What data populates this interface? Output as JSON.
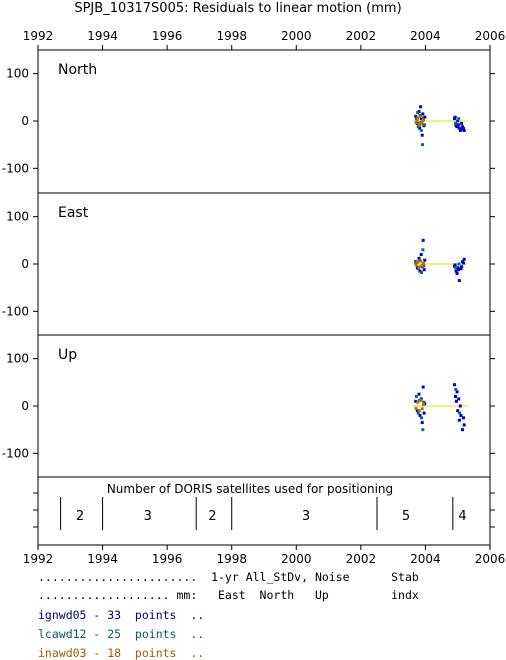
{
  "chart_data": {
    "title": "SPJB_10317S005: Residuals to linear motion (mm)",
    "type": "scatter",
    "x_ticks": [
      "1992",
      "1994",
      "1996",
      "1998",
      "2000",
      "2002",
      "2004",
      "2006"
    ],
    "xlim": [
      1992,
      2006
    ],
    "panels": [
      {
        "label": "North",
        "ylim": [
          -150,
          150
        ],
        "y_ticks": [
          100,
          0,
          -100
        ],
        "y_tick_labels": [
          "100",
          "0",
          "-100"
        ],
        "fit_line": [
          [
            2003.6,
            0
          ],
          [
            2005.3,
            0
          ]
        ],
        "series": [
          {
            "name": "ignwd05",
            "color": "#0000cc",
            "points": [
              [
                2003.7,
                10
              ],
              [
                2003.75,
                -5
              ],
              [
                2003.8,
                20
              ],
              [
                2003.82,
                -15
              ],
              [
                2003.85,
                30
              ],
              [
                2003.88,
                5
              ],
              [
                2003.9,
                -30
              ],
              [
                2003.92,
                15
              ],
              [
                2003.95,
                -10
              ],
              [
                2003.98,
                8
              ],
              [
                2004.9,
                5
              ],
              [
                2004.95,
                -10
              ],
              [
                2005.0,
                0
              ],
              [
                2005.05,
                -15
              ],
              [
                2005.1,
                -18
              ],
              [
                2005.15,
                -12
              ],
              [
                2005.2,
                -20
              ],
              [
                2004.92,
                8
              ],
              [
                2005.02,
                -8
              ],
              [
                2005.12,
                -5
              ],
              [
                2005.18,
                -16
              ],
              [
                2004.98,
                -12
              ],
              [
                2005.08,
                -20
              ]
            ]
          },
          {
            "name": "lcawd12",
            "color": "#007070",
            "points": [
              [
                2003.72,
                5
              ],
              [
                2003.78,
                -12
              ],
              [
                2003.83,
                12
              ],
              [
                2003.87,
                -20
              ],
              [
                2003.91,
                -50
              ],
              [
                2003.94,
                3
              ],
              [
                2003.97,
                -8
              ],
              [
                2003.76,
                18
              ],
              [
                2003.86,
                -3
              ],
              [
                2004.93,
                -5
              ],
              [
                2005.03,
                5
              ]
            ]
          },
          {
            "name": "inawd03",
            "color": "#c07000",
            "points": [
              [
                2003.71,
                -3
              ],
              [
                2003.77,
                6
              ],
              [
                2003.81,
                -8
              ],
              [
                2003.86,
                10
              ],
              [
                2003.9,
                -4
              ],
              [
                2003.93,
                2
              ],
              [
                2003.74,
                0
              ],
              [
                2003.84,
                -6
              ]
            ]
          }
        ]
      },
      {
        "label": "East",
        "ylim": [
          -150,
          150
        ],
        "y_ticks": [
          100,
          0,
          -100
        ],
        "y_tick_labels": [
          "100",
          "0",
          "-100"
        ],
        "fit_line": [
          [
            2003.6,
            0
          ],
          [
            2005.3,
            0
          ]
        ],
        "series": [
          {
            "name": "ignwd05",
            "color": "#0000cc",
            "points": [
              [
                2003.7,
                5
              ],
              [
                2003.75,
                -8
              ],
              [
                2003.8,
                12
              ],
              [
                2003.83,
                -15
              ],
              [
                2003.87,
                20
              ],
              [
                2003.9,
                -5
              ],
              [
                2003.93,
                50
              ],
              [
                2003.96,
                -12
              ],
              [
                2003.98,
                8
              ],
              [
                2004.9,
                -5
              ],
              [
                2004.95,
                -15
              ],
              [
                2005.0,
                -8
              ],
              [
                2005.05,
                -35
              ],
              [
                2005.1,
                -10
              ],
              [
                2005.15,
                5
              ],
              [
                2005.2,
                10
              ],
              [
                2004.92,
                -2
              ],
              [
                2005.02,
                -12
              ],
              [
                2005.12,
                -6
              ],
              [
                2005.18,
                2
              ],
              [
                2004.98,
                -20
              ]
            ]
          },
          {
            "name": "lcawd12",
            "color": "#007070",
            "points": [
              [
                2003.72,
                3
              ],
              [
                2003.78,
                -10
              ],
              [
                2003.82,
                8
              ],
              [
                2003.88,
                -18
              ],
              [
                2003.92,
                30
              ],
              [
                2003.95,
                -4
              ],
              [
                2004.94,
                -8
              ],
              [
                2005.04,
                0
              ]
            ]
          },
          {
            "name": "inawd03",
            "color": "#c07000",
            "points": [
              [
                2003.71,
                -2
              ],
              [
                2003.76,
                4
              ],
              [
                2003.81,
                -6
              ],
              [
                2003.86,
                6
              ],
              [
                2003.9,
                -3
              ],
              [
                2003.94,
                1
              ]
            ]
          }
        ]
      },
      {
        "label": "Up",
        "ylim": [
          -150,
          150
        ],
        "y_ticks": [
          100,
          0,
          -100
        ],
        "y_tick_labels": [
          "100",
          "0",
          "-100"
        ],
        "fit_line": [
          [
            2003.6,
            0
          ],
          [
            2005.3,
            0
          ]
        ],
        "series": [
          {
            "name": "ignwd05",
            "color": "#0000cc",
            "points": [
              [
                2003.7,
                10
              ],
              [
                2003.75,
                -10
              ],
              [
                2003.8,
                25
              ],
              [
                2003.83,
                -20
              ],
              [
                2003.87,
                15
              ],
              [
                2003.9,
                -35
              ],
              [
                2003.93,
                40
              ],
              [
                2003.96,
                -15
              ],
              [
                2003.98,
                5
              ],
              [
                2004.9,
                45
              ],
              [
                2004.93,
                20
              ],
              [
                2004.96,
                10
              ],
              [
                2005.0,
                -10
              ],
              [
                2005.05,
                -30
              ],
              [
                2005.1,
                -20
              ],
              [
                2005.15,
                -50
              ],
              [
                2005.2,
                -40
              ],
              [
                2004.98,
                30
              ],
              [
                2005.08,
                0
              ],
              [
                2005.18,
                -25
              ],
              [
                2005.03,
                15
              ]
            ]
          },
          {
            "name": "lcawd12",
            "color": "#007070",
            "points": [
              [
                2003.72,
                20
              ],
              [
                2003.78,
                -15
              ],
              [
                2003.82,
                12
              ],
              [
                2003.88,
                -25
              ],
              [
                2003.92,
                -50
              ],
              [
                2003.95,
                8
              ],
              [
                2004.94,
                35
              ],
              [
                2005.06,
                -15
              ]
            ]
          },
          {
            "name": "inawd03",
            "color": "#c07000",
            "points": [
              [
                2003.71,
                -5
              ],
              [
                2003.76,
                8
              ],
              [
                2003.81,
                -10
              ],
              [
                2003.86,
                12
              ],
              [
                2003.9,
                -6
              ],
              [
                2003.94,
                3
              ]
            ]
          }
        ]
      }
    ],
    "satellites": {
      "title": "Number of DORIS satellites used for positioning",
      "boundaries": [
        1992.7,
        1994.0,
        1996.9,
        1998.0,
        2002.5,
        2004.85
      ],
      "segments": [
        {
          "x": 1993.3,
          "label": "2"
        },
        {
          "x": 1995.4,
          "label": "3"
        },
        {
          "x": 1997.4,
          "label": "2"
        },
        {
          "x": 2000.3,
          "label": "3"
        },
        {
          "x": 2003.4,
          "label": "5"
        },
        {
          "x": 2005.15,
          "label": "4"
        }
      ]
    }
  },
  "legend": {
    "header1": ".......................  1-yr All_StDv, Noise      Stab",
    "header2": "................... mm:   East  North   Up         indx",
    "rows": [
      {
        "text": "ignwd05 - 33  points  ..",
        "color": "#00007a"
      },
      {
        "text": "lcawd12 - 25  points  ..",
        "color": "#006060"
      },
      {
        "text": "inawd03 - 18  points  ..",
        "color": "#a05a00"
      }
    ]
  }
}
